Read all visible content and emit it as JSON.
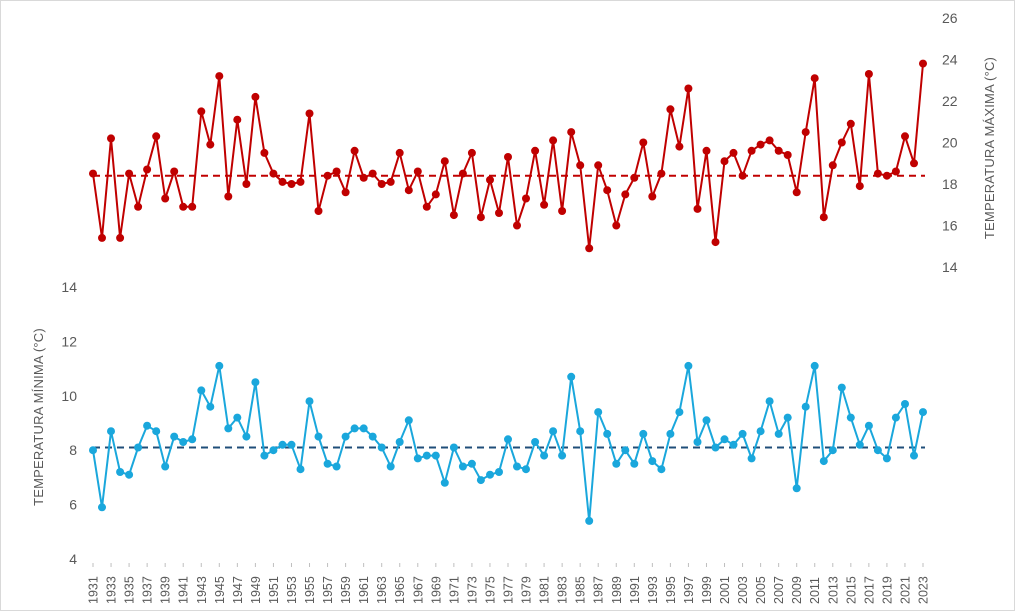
{
  "chart_data": {
    "type": "line",
    "x": [
      1931,
      1932,
      1933,
      1934,
      1935,
      1936,
      1937,
      1938,
      1939,
      1940,
      1941,
      1942,
      1943,
      1944,
      1945,
      1946,
      1947,
      1948,
      1949,
      1950,
      1951,
      1952,
      1953,
      1954,
      1955,
      1956,
      1957,
      1958,
      1959,
      1960,
      1961,
      1962,
      1963,
      1964,
      1965,
      1966,
      1967,
      1968,
      1969,
      1970,
      1971,
      1972,
      1973,
      1974,
      1975,
      1976,
      1977,
      1978,
      1979,
      1980,
      1981,
      1982,
      1983,
      1984,
      1985,
      1986,
      1987,
      1988,
      1989,
      1990,
      1991,
      1992,
      1993,
      1994,
      1995,
      1996,
      1997,
      1998,
      1999,
      2000,
      2001,
      2002,
      2003,
      2004,
      2005,
      2006,
      2007,
      2008,
      2009,
      2010,
      2011,
      2012,
      2013,
      2014,
      2015,
      2016,
      2017,
      2018,
      2019,
      2020,
      2021,
      2022,
      2023
    ],
    "x_tick_labels": [
      "1931",
      "1933",
      "1935",
      "1937",
      "1939",
      "1941",
      "1943",
      "1945",
      "1947",
      "1949",
      "1951",
      "1953",
      "1955",
      "1957",
      "1959",
      "1961",
      "1963",
      "1965",
      "1967",
      "1969",
      "1971",
      "1973",
      "1975",
      "1977",
      "1979",
      "1981",
      "1983",
      "1985",
      "1987",
      "1989",
      "1991",
      "1993",
      "1995",
      "1997",
      "1999",
      "2001",
      "2003",
      "2005",
      "2007",
      "2009",
      "2011",
      "2013",
      "2015",
      "2017",
      "2019",
      "2021",
      "2023"
    ],
    "series": [
      {
        "axis": "right",
        "color": "#c00000",
        "mean": 18.4,
        "values": [
          18.5,
          15.4,
          20.2,
          15.4,
          18.5,
          16.9,
          18.7,
          20.3,
          17.3,
          18.6,
          16.9,
          16.9,
          21.5,
          19.9,
          23.2,
          17.4,
          21.1,
          18.0,
          22.2,
          19.5,
          18.5,
          18.1,
          18.0,
          18.1,
          21.4,
          16.7,
          18.4,
          18.6,
          17.6,
          19.6,
          18.3,
          18.5,
          18.0,
          18.1,
          19.5,
          17.7,
          18.6,
          16.9,
          17.5,
          19.1,
          16.5,
          18.5,
          19.5,
          16.4,
          18.2,
          16.6,
          19.3,
          16.0,
          17.3,
          19.6,
          17.0,
          20.1,
          16.7,
          20.5,
          18.9,
          14.9,
          18.9,
          17.7,
          16.0,
          17.5,
          18.3,
          20.0,
          17.4,
          18.5,
          21.6,
          19.8,
          22.6,
          16.8,
          19.6,
          15.2,
          19.1,
          19.5,
          18.4,
          19.6,
          19.9,
          20.1,
          19.6,
          19.4,
          17.6,
          20.5,
          23.1,
          16.4,
          18.9,
          20.0,
          20.9,
          17.9,
          23.3,
          18.5,
          18.4,
          18.6,
          20.3,
          19.0,
          23.8
        ]
      },
      {
        "axis": "left",
        "color": "#1aa7dc",
        "mean": 8.1,
        "values": [
          8.0,
          5.9,
          8.7,
          7.2,
          7.1,
          8.1,
          8.9,
          8.7,
          7.4,
          8.5,
          8.3,
          8.4,
          10.2,
          9.6,
          11.1,
          8.8,
          9.2,
          8.5,
          10.5,
          7.8,
          8.0,
          8.2,
          8.2,
          7.3,
          9.8,
          8.5,
          7.5,
          7.4,
          8.5,
          8.8,
          8.8,
          8.5,
          8.1,
          7.4,
          8.3,
          9.1,
          7.7,
          7.8,
          7.8,
          6.8,
          8.1,
          7.4,
          7.5,
          6.9,
          7.1,
          7.2,
          8.4,
          7.4,
          7.3,
          8.3,
          7.8,
          8.7,
          7.8,
          10.7,
          8.7,
          5.4,
          9.4,
          8.6,
          7.5,
          8.0,
          7.5,
          8.6,
          7.6,
          7.3,
          8.6,
          9.4,
          11.1,
          8.3,
          9.1,
          8.1,
          8.4,
          8.2,
          8.6,
          7.7,
          8.7,
          9.8,
          8.6,
          9.2,
          6.6,
          9.6,
          11.1,
          7.6,
          8.0,
          10.3,
          9.2,
          8.2,
          8.9,
          8.0,
          7.7,
          9.2,
          9.7,
          7.8,
          9.4
        ]
      }
    ],
    "y_left": {
      "label": "TEMPERATURA MÍNIMA (°C)",
      "ticks": [
        "4",
        "6",
        "8",
        "10",
        "12",
        "14"
      ],
      "ylim": [
        4,
        14
      ]
    },
    "y_right": {
      "label": "TEMPERATURA MÁXIMA (°C)",
      "ticks": [
        "14",
        "16",
        "18",
        "20",
        "22",
        "24",
        "26"
      ],
      "ylim": [
        14,
        26
      ]
    },
    "grid": false,
    "legend": "none"
  }
}
